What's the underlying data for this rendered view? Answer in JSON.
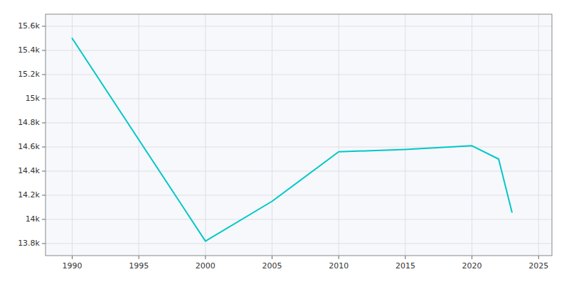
{
  "chart_data": {
    "type": "line",
    "x": [
      1990,
      2000,
      2005,
      2010,
      2015,
      2020,
      2022,
      2023
    ],
    "values": [
      15500,
      13820,
      14150,
      14560,
      14580,
      14610,
      14500,
      14060
    ],
    "color": "#00c8c8",
    "xlim": [
      1988,
      2026
    ],
    "xticks": [
      1990,
      1995,
      2000,
      2005,
      2010,
      2015,
      2020,
      2025
    ],
    "ylim": [
      13700,
      15700
    ],
    "yticks": [
      {
        "value": 13800,
        "label": "13.8k"
      },
      {
        "value": 14000,
        "label": "14k"
      },
      {
        "value": 14200,
        "label": "14.2k"
      },
      {
        "value": 14400,
        "label": "14.4k"
      },
      {
        "value": 14600,
        "label": "14.6k"
      },
      {
        "value": 14800,
        "label": "14.8k"
      },
      {
        "value": 15000,
        "label": "15k"
      },
      {
        "value": 15200,
        "label": "15.2k"
      },
      {
        "value": 15400,
        "label": "15.4k"
      },
      {
        "value": 15600,
        "label": "15.6k"
      }
    ],
    "grid": true
  }
}
